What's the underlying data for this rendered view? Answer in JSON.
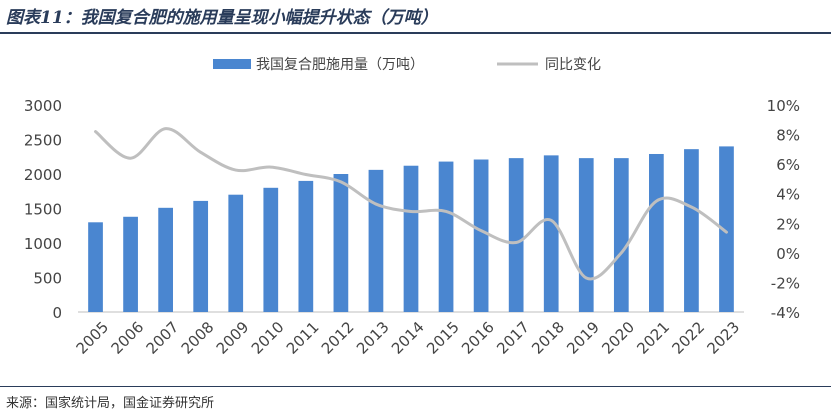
{
  "header": {
    "title": "图表11：我国复合肥的施用量呈现小幅提升状态（万吨）"
  },
  "footer": {
    "source": "来源：国家统计局，国金证券研究所"
  },
  "colors": {
    "bar": "#4a86d0",
    "line": "#bfbfbf",
    "rule": "#2a3c5a"
  },
  "chart_data": {
    "type": "bar",
    "title": "我国复合肥的施用量呈现小幅提升状态（万吨）",
    "categories": [
      "2005",
      "2006",
      "2007",
      "2008",
      "2009",
      "2010",
      "2011",
      "2012",
      "2013",
      "2014",
      "2015",
      "2016",
      "2017",
      "2018",
      "2019",
      "2020",
      "2021",
      "2022",
      "2023"
    ],
    "series": [
      {
        "name": "我国复合肥施用量（万吨）",
        "type": "bar",
        "axis": "left",
        "values": [
          1300,
          1380,
          1510,
          1610,
          1700,
          1800,
          1900,
          2000,
          2060,
          2120,
          2180,
          2210,
          2230,
          2270,
          2230,
          2230,
          2290,
          2360,
          2400
        ]
      },
      {
        "name": "同比变化",
        "type": "line",
        "axis": "right",
        "unit": "%",
        "values": [
          8.2,
          6.4,
          8.4,
          6.8,
          5.6,
          5.8,
          5.3,
          4.8,
          3.3,
          2.8,
          2.8,
          1.5,
          0.7,
          2.2,
          -1.7,
          0.0,
          3.5,
          3.1,
          1.4
        ]
      }
    ],
    "y_left": {
      "min": 0,
      "max": 3000,
      "ticks": [
        "0",
        "500",
        "1000",
        "1500",
        "2000",
        "2500",
        "3000"
      ]
    },
    "y_right": {
      "min": -4,
      "max": 10,
      "ticks": [
        "-4%",
        "-2%",
        "0%",
        "2%",
        "4%",
        "6%",
        "8%",
        "10%"
      ]
    },
    "legend": {
      "position": "top",
      "entries": [
        "我国复合肥施用量（万吨）",
        "同比变化"
      ]
    },
    "grid": false
  }
}
